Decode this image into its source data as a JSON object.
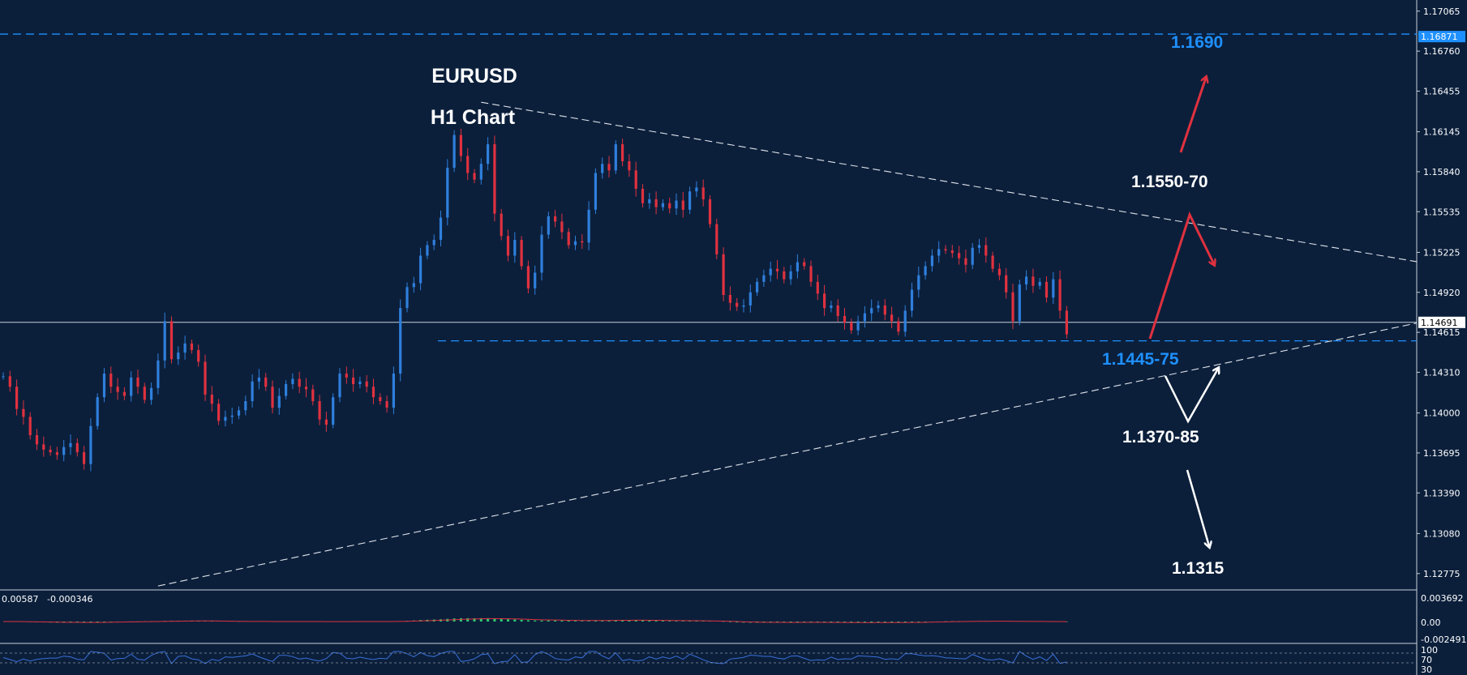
{
  "chart_data": {
    "type": "candlestick",
    "title": "EURUSD",
    "subtitle": "H1 Chart",
    "colors": {
      "background": "#0b1f3b",
      "up": "#2f7fdc",
      "down": "#e0313f",
      "accent": "#1e90ff",
      "signal": "#e0313f"
    },
    "price_axis": {
      "ticks": [
        "1.17065",
        "1.16760",
        "1.16455",
        "1.16145",
        "1.15840",
        "1.15535",
        "1.15225",
        "1.14920",
        "1.14615",
        "1.14310",
        "1.14000",
        "1.13695",
        "1.13390",
        "1.13080",
        "1.12775"
      ],
      "ylim": [
        1.1265,
        1.1715
      ],
      "current_price": "1.14691",
      "marker_price": "1.16871"
    },
    "levels": [
      {
        "price": 1.1689,
        "label": "1.1690",
        "style": "dashed"
      },
      {
        "price": 1.1455,
        "label": "1.1445-75",
        "style": "dashed"
      }
    ],
    "trendlines": [
      {
        "name": "upper",
        "from": [
          71,
          1.1637
        ],
        "to": [
          175,
          1.1546
        ]
      },
      {
        "name": "lower",
        "from": [
          23,
          1.1268
        ],
        "to": [
          175,
          1.1431
        ]
      }
    ],
    "annotations": [
      {
        "text": "1.1550-70",
        "color": "#ffffff"
      },
      {
        "text": "1.1370-85",
        "color": "#ffffff"
      },
      {
        "text": "1.1315",
        "color": "#ffffff"
      }
    ],
    "candles": {
      "start": 1.1428,
      "closes": [
        1.1428,
        1.142,
        1.1403,
        1.1397,
        1.1383,
        1.1376,
        1.1372,
        1.137,
        1.1368,
        1.1374,
        1.1377,
        1.137,
        1.1361,
        1.139,
        1.1412,
        1.143,
        1.142,
        1.1416,
        1.1413,
        1.1427,
        1.142,
        1.141,
        1.1419,
        1.144,
        1.147,
        1.1441,
        1.1446,
        1.1453,
        1.1448,
        1.1439,
        1.1414,
        1.1407,
        1.1394,
        1.1397,
        1.1398,
        1.1402,
        1.1409,
        1.1424,
        1.1427,
        1.142,
        1.1404,
        1.1413,
        1.1422,
        1.1426,
        1.142,
        1.1418,
        1.1409,
        1.1395,
        1.1391,
        1.1412,
        1.143,
        1.1427,
        1.1422,
        1.1424,
        1.142,
        1.1412,
        1.1409,
        1.1404,
        1.143,
        1.148,
        1.1496,
        1.1499,
        1.152,
        1.1528,
        1.1532,
        1.1549,
        1.1587,
        1.1612,
        1.1596,
        1.1583,
        1.1578,
        1.159,
        1.1605,
        1.1552,
        1.1535,
        1.152,
        1.1532,
        1.1512,
        1.1495,
        1.1507,
        1.1536,
        1.155,
        1.1546,
        1.1538,
        1.1528,
        1.1531,
        1.153,
        1.1555,
        1.1583,
        1.159,
        1.1585,
        1.1605,
        1.1592,
        1.1585,
        1.1571,
        1.156,
        1.1563,
        1.1557,
        1.156,
        1.1556,
        1.1562,
        1.1555,
        1.1569,
        1.1572,
        1.1563,
        1.1544,
        1.1521,
        1.149,
        1.1484,
        1.1481,
        1.1482,
        1.1492,
        1.15,
        1.1505,
        1.151,
        1.1508,
        1.1502,
        1.1508,
        1.1515,
        1.1512,
        1.15,
        1.1491,
        1.148,
        1.1482,
        1.1474,
        1.1469,
        1.1463,
        1.147,
        1.1476,
        1.148,
        1.1482,
        1.1475,
        1.147,
        1.1462,
        1.1478,
        1.1494,
        1.1505,
        1.1512,
        1.152,
        1.1525,
        1.1524,
        1.1522,
        1.1518,
        1.1513,
        1.1526,
        1.1528,
        1.152,
        1.151,
        1.1505,
        1.1492,
        1.147,
        1.1498,
        1.1504,
        1.1497,
        1.15,
        1.1488,
        1.1502,
        1.1478,
        1.146
      ]
    },
    "oscillators": [
      {
        "name": "macd",
        "labels": [
          "0.00587",
          "-0.000346"
        ],
        "ticks": [
          "0.003692",
          "0.00",
          "-0.002491"
        ]
      },
      {
        "name": "rsi",
        "ticks": [
          "100",
          "70",
          "30"
        ]
      }
    ]
  }
}
